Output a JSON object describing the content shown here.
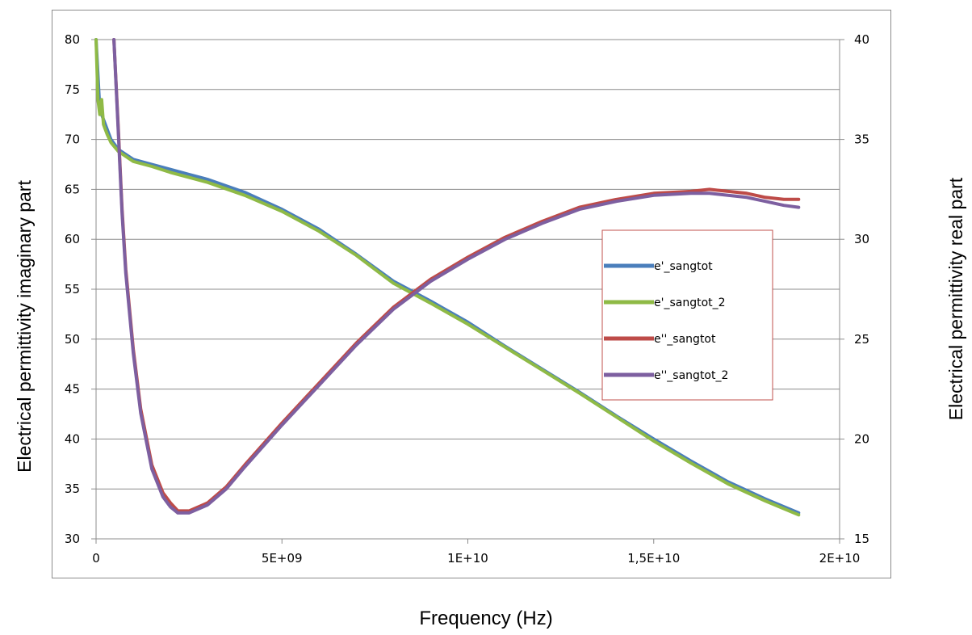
{
  "chart_data": {
    "type": "line",
    "xlabel": "Frequency (Hz)",
    "ylabel_left": "Electrical permittivity imaginary part",
    "ylabel_right": "Electrical permittivity real part",
    "xlim": [
      0,
      20000000000
    ],
    "ylim_left": [
      30,
      80
    ],
    "ylim_right": [
      15,
      40
    ],
    "x_ticks": [
      {
        "value": 0,
        "label": "0"
      },
      {
        "value": 5000000000,
        "label": "5E+09"
      },
      {
        "value": 10000000000,
        "label": "1E+10"
      },
      {
        "value": 15000000000,
        "label": "1,5E+10"
      },
      {
        "value": 20000000000,
        "label": "2E+10"
      }
    ],
    "y_left_ticks": [
      {
        "value": 30,
        "label": "30"
      },
      {
        "value": 35,
        "label": "35"
      },
      {
        "value": 40,
        "label": "40"
      },
      {
        "value": 45,
        "label": "45"
      },
      {
        "value": 50,
        "label": "50"
      },
      {
        "value": 55,
        "label": "55"
      },
      {
        "value": 60,
        "label": "60"
      },
      {
        "value": 65,
        "label": "65"
      },
      {
        "value": 70,
        "label": "70"
      },
      {
        "value": 75,
        "label": "75"
      },
      {
        "value": 80,
        "label": "80"
      }
    ],
    "y_right_ticks": [
      {
        "value": 15,
        "label": "15"
      },
      {
        "value": 20,
        "label": "20"
      },
      {
        "value": 25,
        "label": "25"
      },
      {
        "value": 30,
        "label": "30"
      },
      {
        "value": 35,
        "label": "35"
      },
      {
        "value": 40,
        "label": "40"
      }
    ],
    "grid": "horizontal",
    "legend_position": "center-right",
    "series": [
      {
        "name": "e'_sangtot",
        "color": "#4a7ebb",
        "axis": "left",
        "x": [
          0,
          100000000,
          200000000,
          400000000,
          600000000,
          1000000000,
          1500000000,
          2000000000,
          2500000000,
          3000000000,
          4000000000,
          5000000000,
          6000000000,
          7000000000,
          8000000000,
          9000000000,
          10000000000,
          11000000000,
          12000000000,
          13000000000,
          14000000000,
          15000000000,
          16000000000,
          17000000000,
          18000000000,
          18900000000
        ],
        "y": [
          80,
          73,
          72,
          70,
          69,
          68,
          67.5,
          67,
          66.5,
          66,
          64.7,
          63,
          61,
          58.5,
          55.8,
          53.8,
          51.7,
          49.3,
          47,
          44.7,
          42.3,
          40,
          37.8,
          35.7,
          34,
          32.6
        ]
      },
      {
        "name": "e'_sangtot_2",
        "color": "#8fba46",
        "axis": "left",
        "x": [
          0,
          50000000,
          100000000,
          150000000,
          200000000,
          300000000,
          400000000,
          600000000,
          1000000000,
          1500000000,
          2000000000,
          2500000000,
          3000000000,
          4000000000,
          5000000000,
          6000000000,
          7000000000,
          8000000000,
          9000000000,
          10000000000,
          11000000000,
          12000000000,
          13000000000,
          14000000000,
          15000000000,
          16000000000,
          17000000000,
          18000000000,
          18900000000
        ],
        "y": [
          80,
          74,
          72.5,
          74,
          71.5,
          70.5,
          69.7,
          68.8,
          67.8,
          67.3,
          66.7,
          66.2,
          65.7,
          64.4,
          62.8,
          60.8,
          58.4,
          55.6,
          53.6,
          51.5,
          49.2,
          46.9,
          44.6,
          42.2,
          39.8,
          37.6,
          35.5,
          33.8,
          32.4
        ]
      },
      {
        "name": "e''_sangtot",
        "color": "#be4b48",
        "axis": "right",
        "x": [
          480000000,
          600000000,
          700000000,
          800000000,
          1000000000,
          1200000000,
          1500000000,
          1800000000,
          2000000000,
          2200000000,
          2500000000,
          3000000000,
          3500000000,
          4000000000,
          5000000000,
          6000000000,
          7000000000,
          8000000000,
          9000000000,
          10000000000,
          11000000000,
          12000000000,
          13000000000,
          14000000000,
          15000000000,
          16000000000,
          16500000000,
          17000000000,
          17500000000,
          18000000000,
          18500000000,
          18900000000
        ],
        "y": [
          40,
          35.5,
          31.5,
          28.5,
          24.5,
          21.5,
          18.7,
          17.3,
          16.8,
          16.4,
          16.4,
          16.8,
          17.6,
          18.7,
          20.8,
          22.8,
          24.8,
          26.6,
          28,
          29.1,
          30.1,
          30.9,
          31.6,
          32,
          32.3,
          32.4,
          32.5,
          32.4,
          32.3,
          32.1,
          32,
          32
        ]
      },
      {
        "name": "e''_sangtot_2",
        "color": "#7d5fa0",
        "axis": "right",
        "x": [
          480000000,
          600000000,
          700000000,
          800000000,
          1000000000,
          1200000000,
          1500000000,
          1800000000,
          2000000000,
          2200000000,
          2500000000,
          3000000000,
          3500000000,
          4000000000,
          5000000000,
          6000000000,
          7000000000,
          8000000000,
          9000000000,
          10000000000,
          11000000000,
          12000000000,
          13000000000,
          14000000000,
          15000000000,
          16000000000,
          16500000000,
          17000000000,
          17500000000,
          18000000000,
          18500000000,
          18900000000
        ],
        "y": [
          40,
          35.3,
          31.3,
          28.3,
          24.3,
          21.3,
          18.5,
          17.1,
          16.6,
          16.3,
          16.3,
          16.7,
          17.5,
          18.6,
          20.7,
          22.7,
          24.7,
          26.5,
          27.9,
          29,
          30,
          30.8,
          31.5,
          31.9,
          32.2,
          32.3,
          32.3,
          32.2,
          32.1,
          31.9,
          31.7,
          31.6
        ]
      }
    ]
  }
}
